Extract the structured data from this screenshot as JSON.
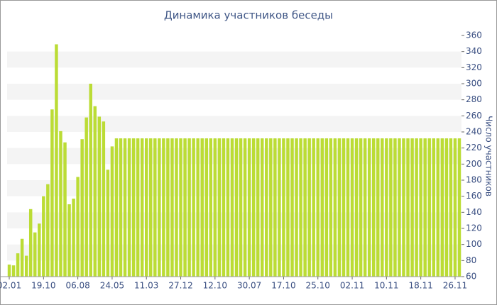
{
  "chart_data": {
    "type": "bar",
    "title": "Динамика участников беседы",
    "y_axis_label": "Число участников",
    "categories": [
      "02.01",
      null,
      null,
      null,
      null,
      null,
      null,
      null,
      "19.10",
      null,
      null,
      null,
      null,
      null,
      null,
      null,
      "06.08",
      null,
      null,
      null,
      null,
      null,
      null,
      null,
      "24.05",
      null,
      null,
      null,
      null,
      null,
      null,
      null,
      "11.03",
      null,
      null,
      null,
      null,
      null,
      null,
      null,
      "27.12",
      null,
      null,
      null,
      null,
      null,
      null,
      null,
      "12.10",
      null,
      null,
      null,
      null,
      null,
      null,
      null,
      "30.07",
      null,
      null,
      null,
      null,
      null,
      null,
      null,
      "17.10",
      null,
      null,
      null,
      null,
      null,
      null,
      null,
      "25.10",
      null,
      null,
      null,
      null,
      null,
      null,
      null,
      "02.11",
      null,
      null,
      null,
      null,
      null,
      null,
      null,
      "10.11",
      null,
      null,
      null,
      null,
      null,
      null,
      null,
      "18.11",
      null,
      null,
      null,
      null,
      null,
      null,
      null,
      "26.11",
      null
    ],
    "values": [
      75,
      74,
      89,
      107,
      86,
      144,
      115,
      126,
      160,
      175,
      268,
      349,
      241,
      227,
      150,
      157,
      184,
      231,
      258,
      300,
      272,
      259,
      253,
      193,
      222,
      232,
      232,
      232,
      232,
      232,
      232,
      232,
      232,
      232,
      232,
      232,
      232,
      232,
      232,
      232,
      232,
      232,
      232,
      232,
      232,
      232,
      232,
      232,
      232,
      232,
      232,
      232,
      232,
      232,
      232,
      232,
      232,
      232,
      232,
      232,
      232,
      232,
      232,
      232,
      232,
      232,
      232,
      232,
      232,
      232,
      232,
      232,
      232,
      232,
      232,
      232,
      232,
      232,
      232,
      232,
      232,
      232,
      232,
      232,
      232,
      232,
      232,
      232,
      232,
      232,
      232,
      232,
      232,
      232,
      232,
      232,
      232,
      232,
      232,
      232,
      232,
      232,
      232,
      232,
      232,
      232
    ],
    "color": "#bbdc35",
    "ylim": [
      60,
      360
    ],
    "yticks": [
      60,
      80,
      100,
      120,
      140,
      160,
      180,
      200,
      220,
      240,
      260,
      280,
      300,
      320,
      340,
      360
    ],
    "y_axis_side": "right",
    "striped_bands": true
  }
}
